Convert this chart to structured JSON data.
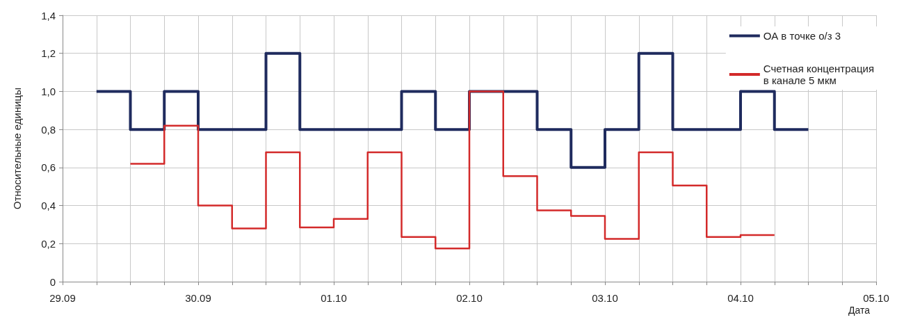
{
  "chart_data": {
    "type": "step",
    "xlabel": "Дата",
    "ylabel": "Относительные единицы",
    "categories": [
      "29.09",
      null,
      null,
      null,
      "30.09",
      null,
      null,
      null,
      "01.10",
      null,
      null,
      null,
      "02.10",
      null,
      null,
      null,
      "03.10",
      null,
      null,
      null,
      "04.10",
      null,
      null,
      null,
      "05.10"
    ],
    "ylim": [
      0,
      1.4
    ],
    "yticks": [
      0,
      {
        "value": 0.2,
        "label": "0,2"
      },
      {
        "value": 0.4,
        "label": "0,4"
      },
      {
        "value": 0.6,
        "label": "0,6"
      },
      {
        "value": 0.8,
        "label": "0,8"
      },
      {
        "value": 1.0,
        "label": "1,0"
      },
      {
        "value": 1.2,
        "label": "1,2"
      },
      {
        "value": 1.4,
        "label": "1,4"
      }
    ],
    "grid": true,
    "legend": "top right",
    "series": [
      {
        "name": "ОА в точке о/з 3",
        "color": "#1f2b5e",
        "values": [
          null,
          1.0,
          0.8,
          1.0,
          0.8,
          0.8,
          1.2,
          0.8,
          0.8,
          0.8,
          1.0,
          0.8,
          1.0,
          1.0,
          0.8,
          0.6,
          0.8,
          1.2,
          0.8,
          0.8,
          1.0,
          0.8,
          0.8,
          null,
          null
        ]
      },
      {
        "name": "Счетная концентрация\nв канале 5 мкм",
        "color": "#d32a2a",
        "values": [
          null,
          null,
          0.62,
          0.82,
          0.4,
          0.28,
          0.68,
          0.285,
          0.33,
          0.68,
          0.235,
          0.175,
          1.0,
          0.555,
          0.375,
          0.345,
          0.225,
          0.68,
          0.505,
          0.235,
          0.245,
          0.245,
          null,
          null,
          null
        ]
      }
    ]
  }
}
